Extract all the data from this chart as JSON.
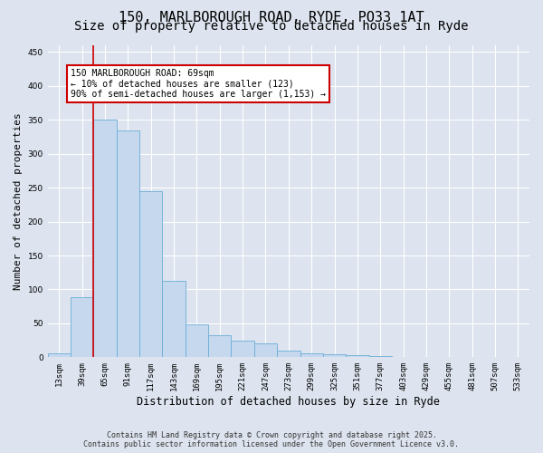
{
  "title": "150, MARLBOROUGH ROAD, RYDE, PO33 1AT",
  "subtitle": "Size of property relative to detached houses in Ryde",
  "xlabel": "Distribution of detached houses by size in Ryde",
  "ylabel": "Number of detached properties",
  "categories": [
    "13sqm",
    "39sqm",
    "65sqm",
    "91sqm",
    "117sqm",
    "143sqm",
    "169sqm",
    "195sqm",
    "221sqm",
    "247sqm",
    "273sqm",
    "299sqm",
    "325sqm",
    "351sqm",
    "377sqm",
    "403sqm",
    "429sqm",
    "455sqm",
    "481sqm",
    "507sqm",
    "533sqm"
  ],
  "values": [
    6,
    88,
    350,
    335,
    245,
    113,
    49,
    32,
    25,
    20,
    10,
    6,
    4,
    3,
    2,
    1,
    1,
    1,
    0,
    0,
    1
  ],
  "bar_color": "#c5d8ee",
  "bar_edge_color": "#6aaed6",
  "background_color": "#dde4ef",
  "grid_color": "#ffffff",
  "annotation_text": "150 MARLBOROUGH ROAD: 69sqm\n← 10% of detached houses are smaller (123)\n90% of semi-detached houses are larger (1,153) →",
  "annotation_box_color": "#ffffff",
  "annotation_border_color": "#cc0000",
  "vline_color": "#cc0000",
  "ylim": [
    0,
    460
  ],
  "yticks": [
    0,
    50,
    100,
    150,
    200,
    250,
    300,
    350,
    400,
    450
  ],
  "footer_line1": "Contains HM Land Registry data © Crown copyright and database right 2025.",
  "footer_line2": "Contains public sector information licensed under the Open Government Licence v3.0.",
  "title_fontsize": 11,
  "subtitle_fontsize": 10,
  "tick_fontsize": 6.5,
  "xlabel_fontsize": 8.5,
  "ylabel_fontsize": 8
}
